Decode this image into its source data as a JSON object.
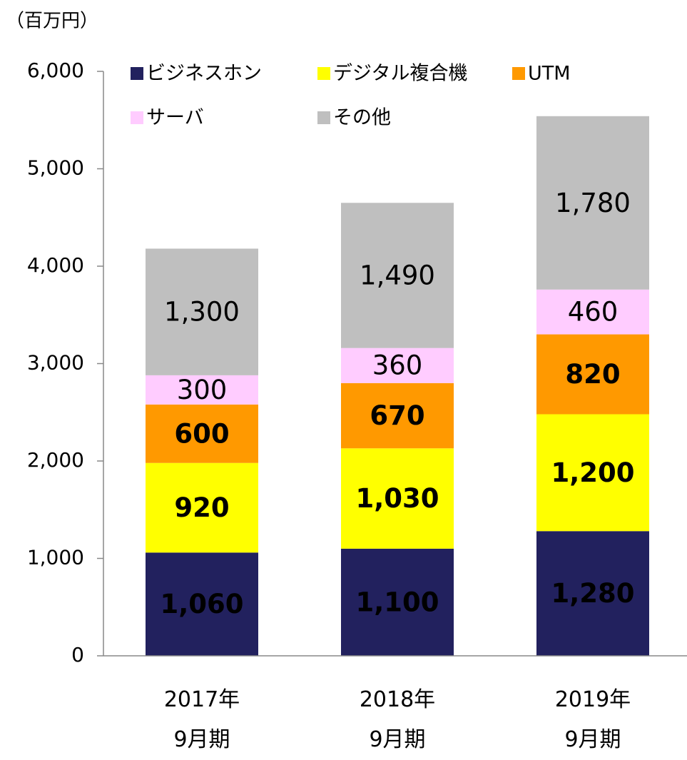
{
  "chart_data": {
    "type": "stacked_bar",
    "y_axis_label": "（百万円）",
    "categories": [
      "2017年\n9月期",
      "2018年\n9月期",
      "2019年\n9月期"
    ],
    "series": [
      {
        "name": "ビジネスホン",
        "color": "#22215e",
        "values": [
          1060,
          1100,
          1280
        ],
        "value_labels": [
          "1,060",
          "1,100",
          "1,280"
        ]
      },
      {
        "name": "デジタル複合機",
        "color": "#ffff00",
        "values": [
          920,
          1030,
          1200
        ],
        "value_labels": [
          "920",
          "1,030",
          "1,200"
        ]
      },
      {
        "name": "UTM",
        "color": "#ff9900",
        "values": [
          600,
          670,
          820
        ]
      },
      {
        "name": "サーバ",
        "color": "#ffccff",
        "values": [
          300,
          360,
          460
        ]
      },
      {
        "name": "その他",
        "color": "#bfbfbf",
        "values": [
          1300,
          1490,
          1780
        ],
        "value_labels": [
          "1,300",
          "1,490",
          "1,780"
        ]
      }
    ],
    "ylim": [
      0,
      6000
    ],
    "yticks": [
      0,
      {
        "value": 1000,
        "label": "1,000"
      },
      {
        "value": 2000,
        "label": "2,000"
      },
      {
        "value": 3000,
        "label": "3,000"
      },
      {
        "value": 4000,
        "label": "4,000"
      },
      {
        "value": 5000,
        "label": "5,000"
      },
      {
        "value": 6000,
        "label": "6,000"
      }
    ],
    "legend": "top"
  }
}
